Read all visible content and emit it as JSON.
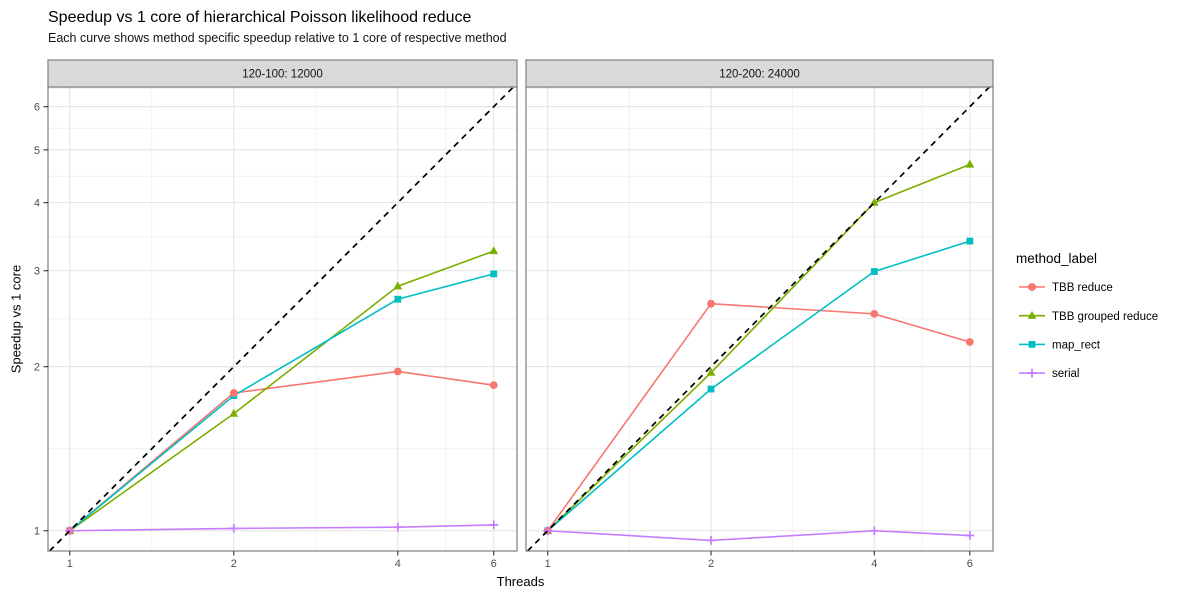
{
  "styles": {
    "strip_bg": "#d9d9d9",
    "strip_border": "#808080",
    "panel_bg": "#ffffff",
    "panel_border": "#7f7f7f",
    "grid_major": "#e3e3e3",
    "grid_minor": "#f1f1f1",
    "tick_mark": "#333333",
    "tick_label": "#4d4d4d",
    "text": "#000000",
    "reference_line": "#000000"
  },
  "chart_data": {
    "type": "line",
    "title": "Speedup vs 1 core of hierarchical Poisson likelihood reduce",
    "subtitle": "Each curve shows method specific speedup relative to 1 core of respective method",
    "xlabel": "Threads",
    "ylabel": "Speedup vs 1 core",
    "legend_title": "method_label",
    "x_scale": "log",
    "y_scale": "log",
    "xlim": [
      0.912,
      6.62
    ],
    "ylim": [
      0.918,
      6.52
    ],
    "x_ticks": [
      1,
      2,
      4,
      6
    ],
    "y_ticks": [
      1,
      2,
      3,
      4,
      5,
      6
    ],
    "x_minor": [
      1.414,
      2.828,
      4.899
    ],
    "y_minor": [
      1.414,
      2.449,
      3.464,
      4.472,
      5.477,
      6.481
    ],
    "grid": true,
    "legend_position": "right",
    "x": [
      1,
      2,
      4,
      6
    ],
    "series_defs": [
      {
        "label": "TBB reduce",
        "color": "#F8766D",
        "marker": "circle"
      },
      {
        "label": "TBB grouped reduce",
        "color": "#7CAE00",
        "marker": "triangle"
      },
      {
        "label": "map_rect",
        "color": "#00BFC4",
        "marker": "square"
      },
      {
        "label": "serial",
        "color": "#C77CFF",
        "marker": "plus"
      }
    ],
    "reference_line": {
      "desc": "ideal speedup y = x",
      "style": "dashed"
    },
    "facets": [
      {
        "label": "120-100: 12000",
        "series": [
          {
            "name": "TBB reduce",
            "y": [
              1.0,
              1.79,
              1.96,
              1.85
            ]
          },
          {
            "name": "TBB grouped reduce",
            "y": [
              1.0,
              1.64,
              2.81,
              3.26
            ]
          },
          {
            "name": "map_rect",
            "y": [
              1.0,
              1.77,
              2.66,
              2.96
            ]
          },
          {
            "name": "serial",
            "y": [
              1.0,
              1.01,
              1.015,
              1.025
            ]
          }
        ]
      },
      {
        "label": "120-200: 24000",
        "series": [
          {
            "name": "TBB reduce",
            "y": [
              1.0,
              2.61,
              2.5,
              2.22
            ]
          },
          {
            "name": "TBB grouped reduce",
            "y": [
              1.0,
              1.95,
              4.0,
              4.7
            ]
          },
          {
            "name": "map_rect",
            "y": [
              1.0,
              1.82,
              2.99,
              3.4
            ]
          },
          {
            "name": "serial",
            "y": [
              1.0,
              0.96,
              1.0,
              0.98
            ]
          }
        ]
      }
    ]
  }
}
